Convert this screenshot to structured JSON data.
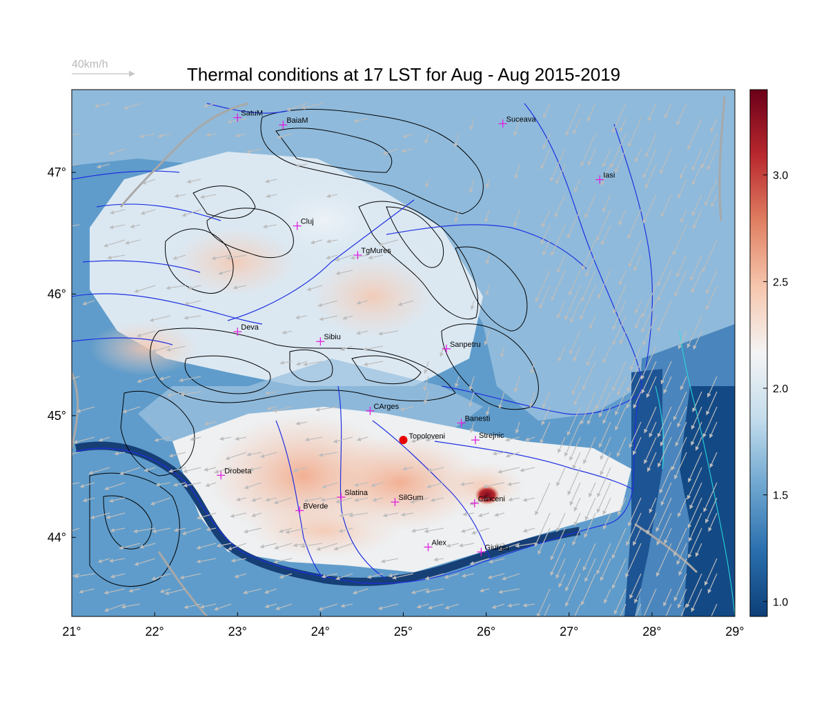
{
  "title": "Thermal conditions at 17 LST for Aug - Aug  2015-2019",
  "wind_reference": {
    "label": "40km/h"
  },
  "map": {
    "lon_range": [
      21,
      29
    ],
    "lat_range": [
      43.35,
      47.68
    ],
    "x_ticks": [
      "21°",
      "22°",
      "23°",
      "24°",
      "25°",
      "26°",
      "27°",
      "28°",
      "29°"
    ],
    "y_ticks": [
      {
        "lat": 47,
        "label": "47°"
      },
      {
        "lat": 46,
        "label": "46°"
      },
      {
        "lat": 45,
        "label": "45°"
      },
      {
        "lat": 44,
        "label": "44°"
      }
    ]
  },
  "colorbar": {
    "range": [
      0.93,
      3.4
    ],
    "ticks": [
      {
        "value": 3.0,
        "label": "3.0"
      },
      {
        "value": 2.5,
        "label": "2.5"
      },
      {
        "value": 2.0,
        "label": "2.0"
      },
      {
        "value": 1.5,
        "label": "1.5"
      },
      {
        "value": 1.0,
        "label": "1.0"
      }
    ],
    "colors": [
      "#0d3f78",
      "#2a6fae",
      "#6fa7d0",
      "#c3dcec",
      "#f4f4f4",
      "#f6c7ae",
      "#e07f62",
      "#b9282e",
      "#6b0018"
    ]
  },
  "stations": [
    {
      "name": "SatuM",
      "lon": 23.0,
      "lat": 47.45
    },
    {
      "name": "BaiaM",
      "lon": 23.55,
      "lat": 47.39
    },
    {
      "name": "Suceava",
      "lon": 26.2,
      "lat": 47.4
    },
    {
      "name": "Iasi",
      "lon": 27.37,
      "lat": 46.94
    },
    {
      "name": "Cluj",
      "lon": 23.72,
      "lat": 46.56
    },
    {
      "name": "TgMures",
      "lon": 24.45,
      "lat": 46.32
    },
    {
      "name": "Deva",
      "lon": 23.0,
      "lat": 45.69
    },
    {
      "name": "Sibiu",
      "lon": 24.0,
      "lat": 45.61
    },
    {
      "name": "Sanpetru",
      "lon": 25.52,
      "lat": 45.55
    },
    {
      "name": "CArges",
      "lon": 24.6,
      "lat": 45.04
    },
    {
      "name": "Banesti",
      "lon": 25.7,
      "lat": 44.94
    },
    {
      "name": "Strejnic",
      "lon": 25.87,
      "lat": 44.8
    },
    {
      "name": "Drobeta",
      "lon": 22.8,
      "lat": 44.51
    },
    {
      "name": "Slatina",
      "lon": 24.25,
      "lat": 44.33
    },
    {
      "name": "SilGum",
      "lon": 24.9,
      "lat": 44.29
    },
    {
      "name": "BVerde",
      "lon": 23.75,
      "lat": 44.22
    },
    {
      "name": "Clinceni",
      "lon": 25.86,
      "lat": 44.28
    },
    {
      "name": "Alex",
      "lon": 25.3,
      "lat": 43.92
    },
    {
      "name": "Giurgiu",
      "lon": 25.94,
      "lat": 43.88
    }
  ],
  "highlight_station": {
    "name": "Topoloveni",
    "lon": 25.0,
    "lat": 44.8
  }
}
